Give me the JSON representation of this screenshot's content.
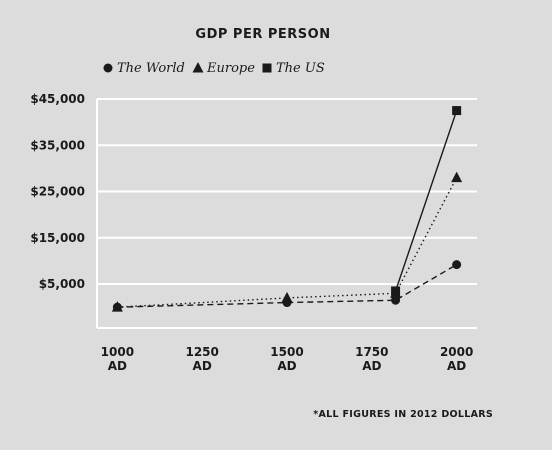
{
  "chart_data": {
    "type": "line",
    "title": "GDP PER PERSON",
    "note": "*ALL FIGURES IN 2012 DOLLARS",
    "xlabel": "",
    "ylabel": "",
    "x": [
      1000,
      1500,
      1820,
      2000
    ],
    "x_ticks": [
      {
        "value": 1000,
        "line1": "1000",
        "line2": "AD"
      },
      {
        "value": 1250,
        "line1": "1250",
        "line2": "AD"
      },
      {
        "value": 1500,
        "line1": "1500",
        "line2": "AD"
      },
      {
        "value": 1750,
        "line1": "1750",
        "line2": "AD"
      },
      {
        "value": 2000,
        "line1": "2000",
        "line2": "AD"
      }
    ],
    "xlim": [
      940,
      2060
    ],
    "y_ticks": [
      {
        "value": 5000,
        "label": "$5,000"
      },
      {
        "value": 15000,
        "label": "$15,000"
      },
      {
        "value": 25000,
        "label": "$25,000"
      },
      {
        "value": 35000,
        "label": "$35,000"
      },
      {
        "value": 45000,
        "label": "$45,000"
      }
    ],
    "ylim": [
      -4500,
      45000
    ],
    "legend_position": "top-left",
    "series": [
      {
        "name": "The World",
        "marker": "circle",
        "line": "dashed",
        "points": [
          [
            1000,
            0
          ],
          [
            1500,
            1000
          ],
          [
            1820,
            1500
          ],
          [
            2000,
            9200
          ]
        ]
      },
      {
        "name": "Europe",
        "marker": "triangle",
        "line": "dotted",
        "points": [
          [
            1000,
            0
          ],
          [
            1500,
            2000
          ],
          [
            1820,
            3000
          ],
          [
            2000,
            28000
          ]
        ]
      },
      {
        "name": "The US",
        "marker": "square",
        "line": "solid",
        "points": [
          [
            1820,
            3500
          ],
          [
            2000,
            42500
          ]
        ]
      }
    ]
  }
}
